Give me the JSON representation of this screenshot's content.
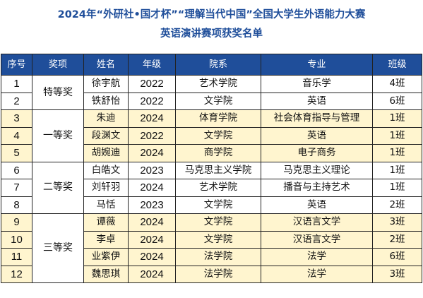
{
  "title_line1": "2024年“外研社•国才杯”“理解当代中国”全国大学生外语能力大赛",
  "title_line2": "英语演讲赛项获奖名单",
  "headers": [
    "序号",
    "奖项",
    "姓名",
    "年级",
    "院系",
    "专业",
    "班级"
  ],
  "awards": [
    {
      "label": "特等奖",
      "rows": 2
    },
    {
      "label": "一等奖",
      "rows": 3
    },
    {
      "label": "二等奖",
      "rows": 3
    },
    {
      "label": "三等奖",
      "rows": 4
    }
  ],
  "rows": [
    {
      "no": "1",
      "name": "徐宇航",
      "grade": "2022",
      "dept": "艺术学院",
      "major": "音乐学",
      "class": "4班"
    },
    {
      "no": "2",
      "name": "铁舒怡",
      "grade": "2022",
      "dept": "文学院",
      "major": "英语",
      "class": "6班"
    },
    {
      "no": "3",
      "name": "朱迪",
      "grade": "2024",
      "dept": "体育学院",
      "major": "社会体育指导与管理",
      "class": "1班"
    },
    {
      "no": "4",
      "name": "段渊文",
      "grade": "2022",
      "dept": "文学院",
      "major": "英语",
      "class": "1班"
    },
    {
      "no": "5",
      "name": "胡婉迪",
      "grade": "2024",
      "dept": "商学院",
      "major": "电子商务",
      "class": "1班"
    },
    {
      "no": "6",
      "name": "白皓文",
      "grade": "2023",
      "dept": "马克思主义学院",
      "major": "马克思主义理论",
      "class": "1班"
    },
    {
      "no": "7",
      "name": "刘轩羽",
      "grade": "2024",
      "dept": "艺术学院",
      "major": "播音与主持艺术",
      "class": "1班"
    },
    {
      "no": "8",
      "name": "马恬",
      "grade": "2023",
      "dept": "文学院",
      "major": "英语",
      "class": "2班"
    },
    {
      "no": "9",
      "name": "谭薇",
      "grade": "2024",
      "dept": "文学院",
      "major": "汉语言文学",
      "class": "3班"
    },
    {
      "no": "10",
      "name": "李卓",
      "grade": "2024",
      "dept": "文学院",
      "major": "汉语言文学",
      "class": "2班"
    },
    {
      "no": "11",
      "name": "业紫伊",
      "grade": "2024",
      "dept": "法学院",
      "major": "法学",
      "class": "6班"
    },
    {
      "no": "12",
      "name": "魏思琪",
      "grade": "2024",
      "dept": "法学院",
      "major": "法学",
      "class": "3班"
    }
  ],
  "colors": {
    "header_bg": "#1f4e9a",
    "title": "#1f4e9a",
    "highlight_row": "#fff5cf"
  }
}
